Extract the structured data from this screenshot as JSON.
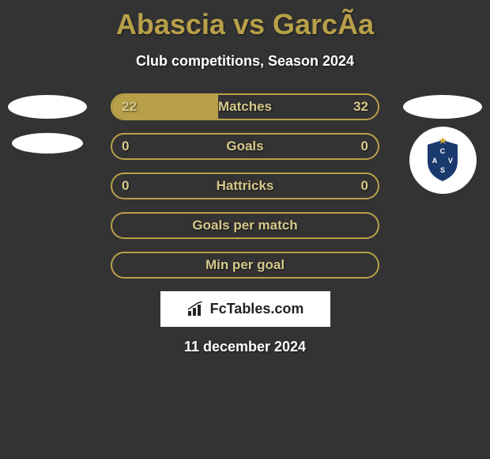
{
  "title": "Abascia vs GarcÃ­a",
  "subtitle": "Club competitions, Season 2024",
  "date": "11 december 2024",
  "branding": "FcTables.com",
  "colors": {
    "accent": "#b8a04a",
    "text_light": "#d5c88a",
    "background": "#333333",
    "white": "#ffffff"
  },
  "stats": [
    {
      "label": "Matches",
      "left_value": "22",
      "right_value": "32",
      "left_fill_pct": 40,
      "right_fill_pct": 0
    },
    {
      "label": "Goals",
      "left_value": "0",
      "right_value": "0",
      "left_fill_pct": 0,
      "right_fill_pct": 0
    },
    {
      "label": "Hattricks",
      "left_value": "0",
      "right_value": "0",
      "left_fill_pct": 0,
      "right_fill_pct": 0
    },
    {
      "label": "Goals per match",
      "left_value": "",
      "right_value": "",
      "left_fill_pct": 0,
      "right_fill_pct": 0
    },
    {
      "label": "Min per goal",
      "left_value": "",
      "right_value": "",
      "left_fill_pct": 0,
      "right_fill_pct": 0
    }
  ],
  "club_badge": {
    "shield_color": "#1a3a6e",
    "shield_border": "#ffffff",
    "star_color": "#d4af37",
    "stripe_colors": [
      "#b02020",
      "#ffffff",
      "#208020"
    ]
  }
}
